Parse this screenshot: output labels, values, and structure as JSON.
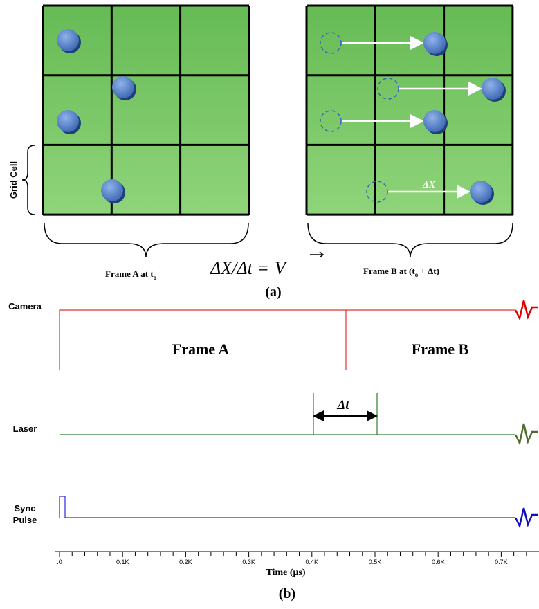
{
  "panel_a": {
    "grid_cell_label": "Grid Cell",
    "frame_a_label": [
      "Frame A at t",
      "o"
    ],
    "equation": [
      "ΔX/Δt =",
      "V"
    ],
    "delta_x": "ΔX",
    "frame_b_label": [
      "Frame B at (t",
      "o",
      " + Δt)"
    ],
    "caption": "(a)"
  },
  "panel_b": {
    "signals": [
      {
        "label": [
          "Camera"
        ]
      },
      {
        "label": [
          "Laser"
        ]
      },
      {
        "label": [
          "Sync",
          "Pulse"
        ]
      }
    ],
    "frames": [
      "Frame A",
      "Frame B"
    ],
    "delta_t": "Δt",
    "axis_ticks": [
      ".0",
      "0.1K",
      "0.2K",
      "0.3K",
      "0.4K",
      "0.5K",
      "0.6K",
      "0.7K"
    ],
    "axis_title": "Time (μs)",
    "caption": "(b)"
  }
}
